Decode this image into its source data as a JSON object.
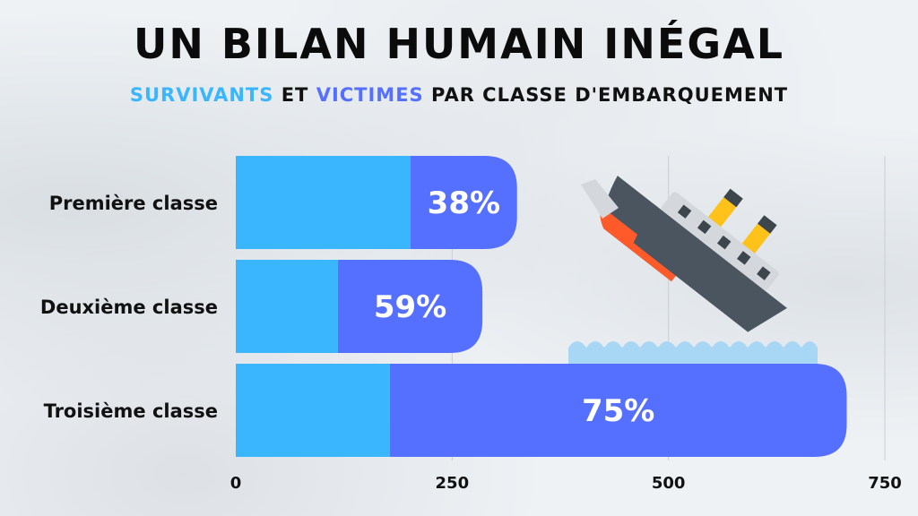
{
  "chart_data": {
    "type": "bar",
    "orientation": "horizontal",
    "stacked": true,
    "title": "UN BILAN HUMAIN INÉGAL",
    "subtitle": {
      "word_survivors": "SURVIVANTS",
      "word_and": " ET ",
      "word_victims": "VICTIMES",
      "rest": " PAR CLASSE D'EMBARQUEMENT"
    },
    "categories": [
      "Première classe",
      "Deuxième classe",
      "Troisième classe"
    ],
    "series": [
      {
        "name": "SURVIVANTS",
        "values": [
          202,
          118,
          178
        ],
        "color": "#3ab6ff"
      },
      {
        "name": "VICTIMES",
        "values": [
          123,
          167,
          528
        ],
        "color": "#5570ff"
      }
    ],
    "bar_labels": [
      "38%",
      "59%",
      "75%"
    ],
    "xlim": [
      0,
      750
    ],
    "xticks": [
      0,
      250,
      500,
      750
    ],
    "grid": true,
    "icon": "sinking-ship-icon"
  }
}
